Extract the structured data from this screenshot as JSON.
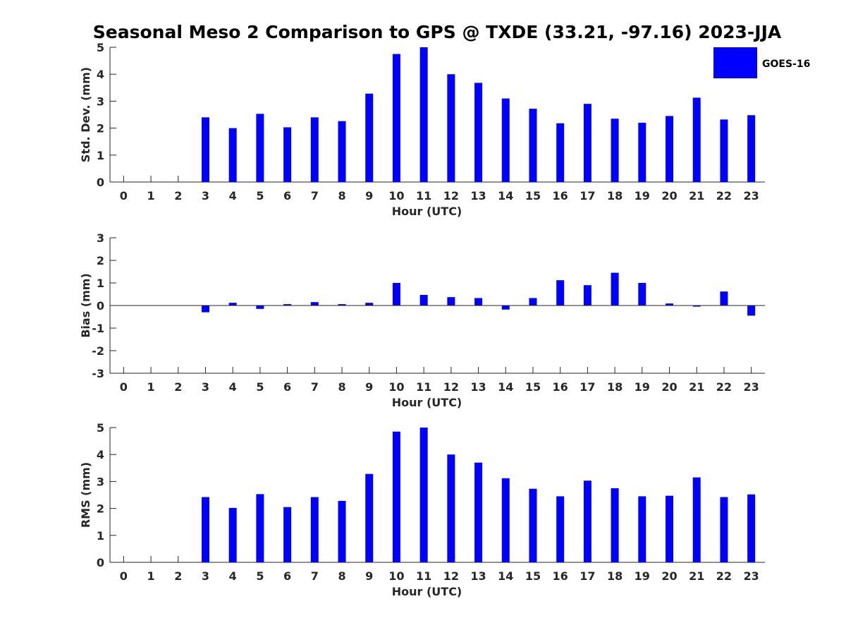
{
  "figure": {
    "title": "Seasonal Meso 2 Comparison to GPS @ TXDE (33.21, -97.16) 2023-JJA",
    "legend": {
      "label": "GOES-16",
      "color": "#0000ff",
      "placement": "top-right"
    }
  },
  "chart_data": [
    {
      "type": "bar",
      "id": "stddev",
      "xlabel": "Hour (UTC)",
      "ylabel": "Std. Dev. (mm)",
      "ylim": [
        0,
        5
      ],
      "yticks": [
        0,
        1,
        2,
        3,
        4,
        5
      ],
      "x": [
        0,
        1,
        2,
        3,
        4,
        5,
        6,
        7,
        8,
        9,
        10,
        11,
        12,
        13,
        14,
        15,
        16,
        17,
        18,
        19,
        20,
        21,
        22,
        23
      ],
      "series": [
        {
          "name": "GOES-16",
          "color": "#0000ff",
          "values": [
            0,
            0,
            0,
            2.4,
            2.0,
            2.53,
            2.03,
            2.4,
            2.26,
            3.28,
            4.75,
            5.0,
            4.0,
            3.68,
            3.1,
            2.72,
            2.18,
            2.9,
            2.35,
            2.2,
            2.45,
            3.13,
            2.32,
            2.48
          ]
        }
      ],
      "grid": false
    },
    {
      "type": "bar",
      "id": "bias",
      "xlabel": "Hour (UTC)",
      "ylabel": "Bias (mm)",
      "ylim": [
        -3,
        3
      ],
      "yticks": [
        -3,
        -2,
        -1,
        0,
        1,
        2,
        3
      ],
      "x": [
        0,
        1,
        2,
        3,
        4,
        5,
        6,
        7,
        8,
        9,
        10,
        11,
        12,
        13,
        14,
        15,
        16,
        17,
        18,
        19,
        20,
        21,
        22,
        23
      ],
      "series": [
        {
          "name": "GOES-16",
          "color": "#0000ff",
          "values": [
            0,
            0,
            0,
            -0.3,
            0.12,
            -0.15,
            0.06,
            0.15,
            0.06,
            0.12,
            1.0,
            0.47,
            0.37,
            0.33,
            -0.18,
            0.33,
            1.12,
            0.9,
            1.45,
            1.0,
            0.09,
            -0.05,
            0.62,
            -0.45
          ]
        }
      ],
      "grid": false
    },
    {
      "type": "bar",
      "id": "rms",
      "xlabel": "Hour (UTC)",
      "ylabel": "RMS (mm)",
      "ylim": [
        0,
        5
      ],
      "yticks": [
        0,
        1,
        2,
        3,
        4,
        5
      ],
      "x": [
        0,
        1,
        2,
        3,
        4,
        5,
        6,
        7,
        8,
        9,
        10,
        11,
        12,
        13,
        14,
        15,
        16,
        17,
        18,
        19,
        20,
        21,
        22,
        23
      ],
      "series": [
        {
          "name": "GOES-16",
          "color": "#0000ff",
          "values": [
            0,
            0,
            0,
            2.42,
            2.02,
            2.53,
            2.05,
            2.42,
            2.28,
            3.28,
            4.85,
            5.0,
            4.0,
            3.7,
            3.12,
            2.73,
            2.45,
            3.03,
            2.75,
            2.45,
            2.47,
            3.15,
            2.42,
            2.52
          ]
        }
      ],
      "grid": false
    }
  ]
}
